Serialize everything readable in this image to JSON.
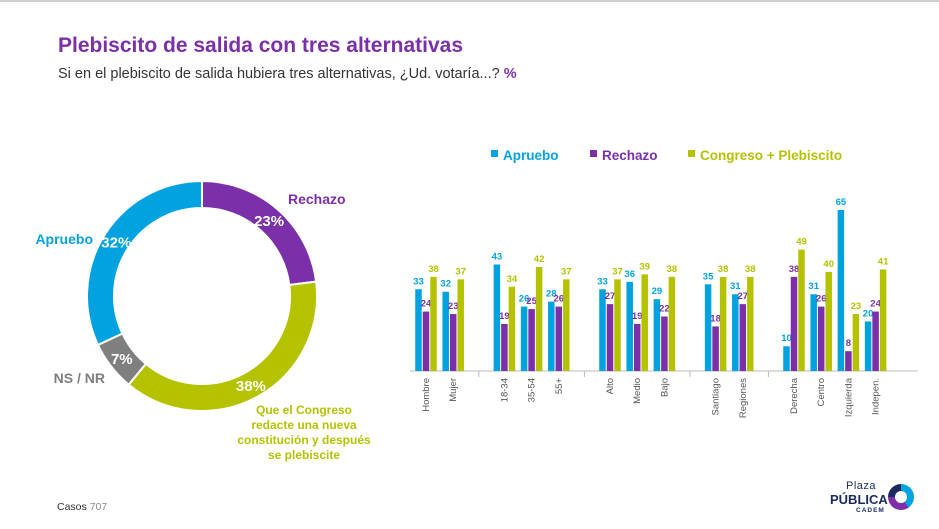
{
  "title": "Plebiscito de salida con tres alternativas",
  "subtitle": "Si en el plebiscito de salida hubiera tres alternativas, ¿Ud. votaría...?",
  "subtitle_unit": "%",
  "footer": {
    "casos_label": "Casos",
    "casos_value": "707"
  },
  "logo": {
    "line1": "Plaza",
    "line2": "PÚBLICA",
    "line3": "CADEM"
  },
  "colors": {
    "apruebo": "#00a3e0",
    "rechazo": "#7b2fa8",
    "congreso": "#b5c200",
    "nsnr": "#7f7f7f",
    "title": "#7b2fa8"
  },
  "chart_data": [
    {
      "type": "pie",
      "slices": [
        {
          "label": "Rechazo",
          "value": 23,
          "value_label": "23%"
        },
        {
          "label": "Que el Congreso redacte una nueva constitución y después se plebiscite",
          "label_lines": [
            "Que el Congreso",
            "redacte una nueva",
            "constitución y después",
            "se plebiscite"
          ],
          "value": 38,
          "value_label": "38%"
        },
        {
          "label": "NS / NR",
          "value": 7,
          "value_label": "7%"
        },
        {
          "label": "Apruebo",
          "value": 32,
          "value_label": "32%"
        }
      ]
    },
    {
      "type": "bar",
      "legend": [
        "Apruebo",
        "Rechazo",
        "Congreso + Plebiscito"
      ],
      "categories": [
        "Hombre",
        "Mujer",
        "18-34",
        "35-54",
        "55+",
        "Alto",
        "Medio",
        "Bajo",
        "Santiago",
        "Regiones",
        "Derecha",
        "Centro",
        "Izquierda",
        "Indepen."
      ],
      "groups": [
        2,
        3,
        3,
        2,
        4
      ],
      "series": [
        {
          "name": "Apruebo",
          "values": [
            33,
            32,
            43,
            26,
            28,
            33,
            36,
            29,
            35,
            31,
            10,
            31,
            65,
            20
          ]
        },
        {
          "name": "Rechazo",
          "values": [
            24,
            23,
            19,
            25,
            26,
            27,
            19,
            22,
            18,
            27,
            38,
            26,
            8,
            24
          ]
        },
        {
          "name": "Congreso + Plebiscito",
          "values": [
            38,
            37,
            34,
            42,
            37,
            37,
            39,
            38,
            38,
            38,
            49,
            40,
            23,
            41
          ]
        }
      ],
      "ylim": [
        0,
        70
      ]
    }
  ]
}
